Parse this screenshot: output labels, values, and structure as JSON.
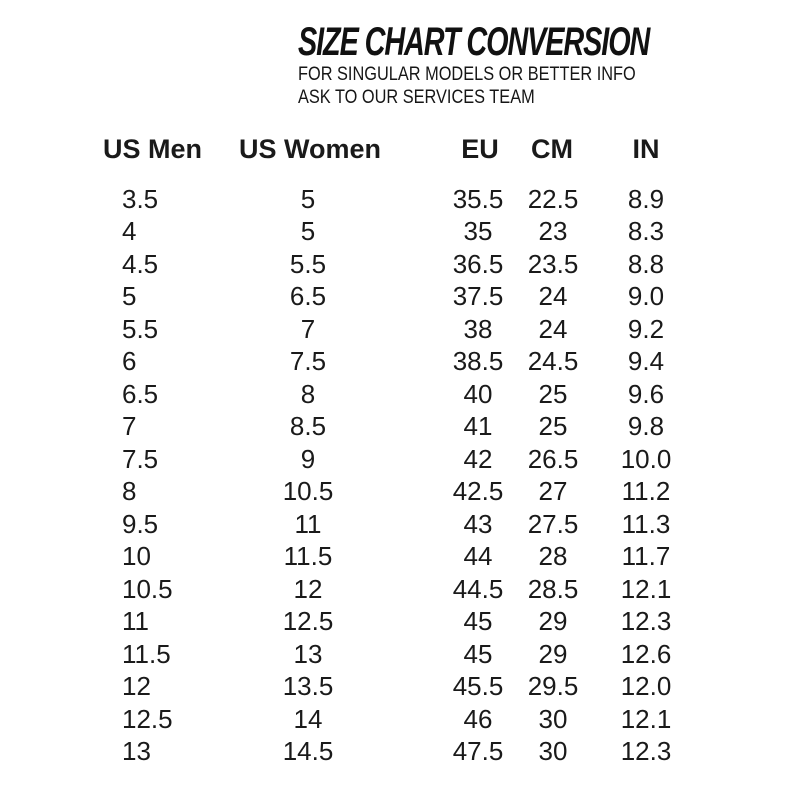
{
  "title": "SIZE CHART CONVERSION",
  "subtitle": {
    "line1": "FOR SINGULAR MODELS OR BETTER INFO",
    "line2": "ASK TO OUR SERVICES TEAM"
  },
  "colors": {
    "text": "#1a1a1a",
    "background": "#ffffff"
  },
  "chart_data": {
    "type": "table",
    "title": "SIZE CHART CONVERSION",
    "columns": [
      "US Men",
      "US Women",
      "EU",
      "CM",
      "IN"
    ],
    "rows": [
      [
        "3.5",
        "5",
        "35.5",
        "22.5",
        "8.9"
      ],
      [
        "4",
        "5",
        "35",
        "23",
        "8.3"
      ],
      [
        "4.5",
        "5.5",
        "36.5",
        "23.5",
        "8.8"
      ],
      [
        "5",
        "6.5",
        "37.5",
        "24",
        "9.0"
      ],
      [
        "5.5",
        "7",
        "38",
        "24",
        "9.2"
      ],
      [
        "6",
        "7.5",
        "38.5",
        "24.5",
        "9.4"
      ],
      [
        "6.5",
        "8",
        "40",
        "25",
        "9.6"
      ],
      [
        "7",
        "8.5",
        "41",
        "25",
        "9.8"
      ],
      [
        "7.5",
        "9",
        "42",
        "26.5",
        "10.0"
      ],
      [
        "8",
        "10.5",
        "42.5",
        "27",
        "11.2"
      ],
      [
        "9.5",
        "11",
        "43",
        "27.5",
        "11.3"
      ],
      [
        "10",
        "11.5",
        "44",
        "28",
        "11.7"
      ],
      [
        "10.5",
        "12",
        "44.5",
        "28.5",
        "12.1"
      ],
      [
        "11",
        "12.5",
        "45",
        "29",
        "12.3"
      ],
      [
        "11.5",
        "13",
        "45",
        "29",
        "12.6"
      ],
      [
        "12",
        "13.5",
        "45.5",
        "29.5",
        "12.0"
      ],
      [
        "12.5",
        "14",
        "46",
        "30",
        "12.1"
      ],
      [
        "13",
        "14.5",
        "47.5",
        "30",
        "12.3"
      ]
    ]
  }
}
